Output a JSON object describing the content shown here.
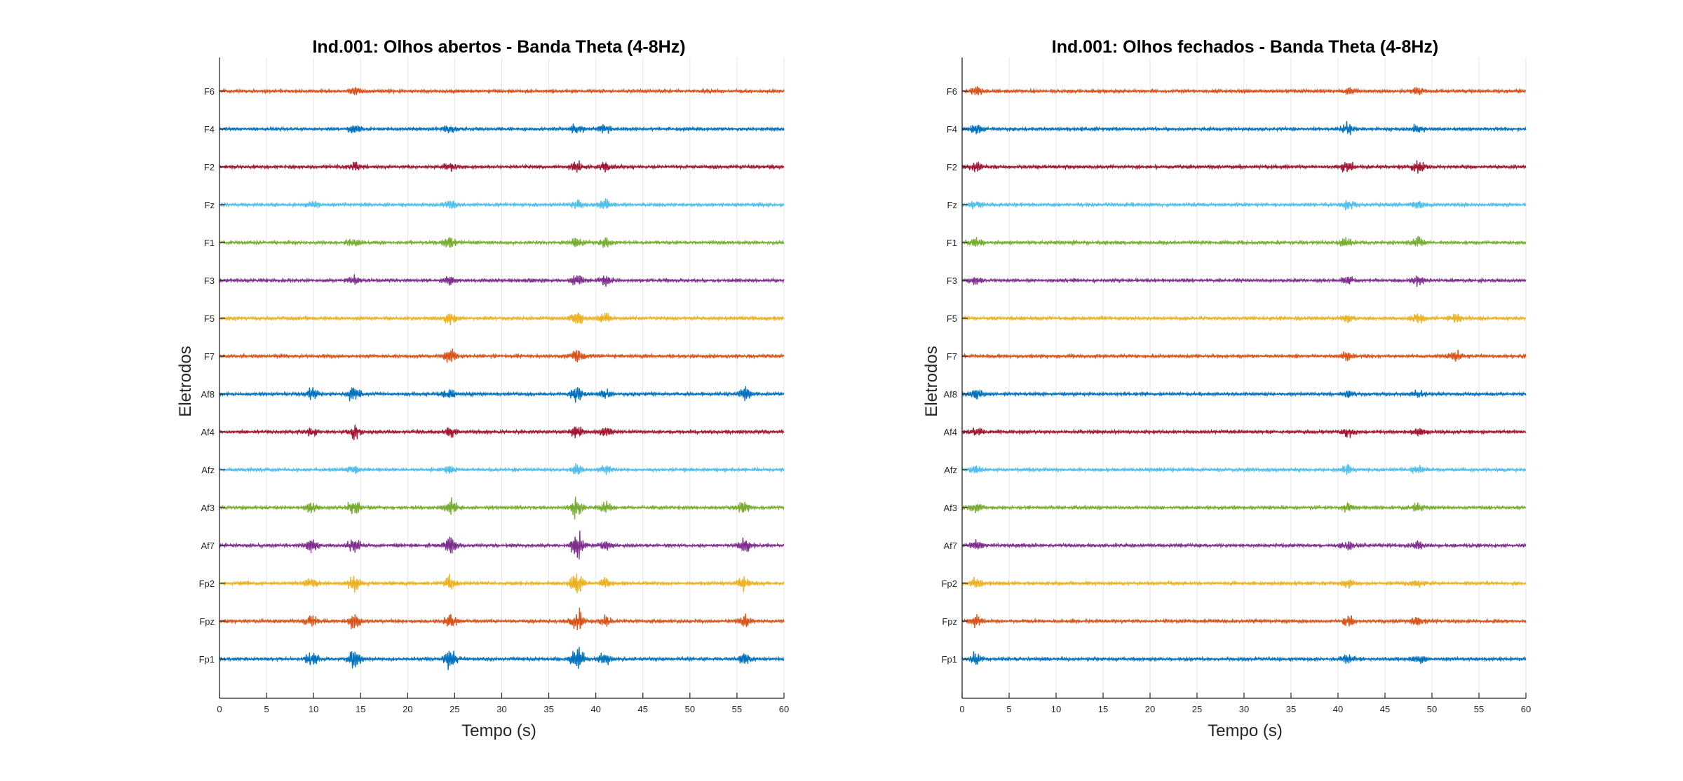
{
  "figure": {
    "background": "#ffffff",
    "axis_color": "#262626",
    "grid_color": "#e6e6e6"
  },
  "chart_data": [
    {
      "type": "line",
      "title": "Ind.001: Olhos abertos - Banda Theta (4-8Hz)",
      "xlabel": "Tempo (s)",
      "ylabel": "Eletrodos",
      "xlim": [
        0,
        60
      ],
      "xticks": [
        "0",
        "5",
        "10",
        "15",
        "20",
        "25",
        "30",
        "35",
        "40",
        "45",
        "50",
        "55",
        "60"
      ],
      "grid": true,
      "yticklabels": [
        "F6",
        "F4",
        "F2",
        "Fz",
        "F1",
        "F3",
        "F5",
        "F7",
        "Af8",
        "Af4",
        "Afz",
        "Af3",
        "Af7",
        "Fp2",
        "Fpz",
        "Fp1"
      ],
      "series": [
        {
          "name": "F6",
          "color": "#D95319",
          "bursts": [
            [
              14.3,
              0.5
            ]
          ]
        },
        {
          "name": "F4",
          "color": "#0072BD",
          "bursts": [
            [
              14.3,
              0.5
            ],
            [
              24.5,
              0.4
            ],
            [
              38.0,
              0.6
            ],
            [
              41.0,
              0.5
            ]
          ]
        },
        {
          "name": "F2",
          "color": "#A2142F",
          "bursts": [
            [
              14.3,
              0.5
            ],
            [
              24.5,
              0.4
            ],
            [
              38.0,
              0.6
            ],
            [
              41.0,
              0.6
            ]
          ]
        },
        {
          "name": "Fz",
          "color": "#4DBEEE",
          "bursts": [
            [
              10.0,
              0.4
            ],
            [
              24.5,
              0.4
            ],
            [
              38.0,
              0.6
            ],
            [
              41.0,
              0.5
            ]
          ]
        },
        {
          "name": "F1",
          "color": "#77AC30",
          "bursts": [
            [
              14.3,
              0.5
            ],
            [
              24.5,
              0.6
            ],
            [
              38.0,
              0.6
            ],
            [
              41.0,
              0.6
            ]
          ]
        },
        {
          "name": "F3",
          "color": "#7E2F8E",
          "bursts": [
            [
              14.3,
              0.5
            ],
            [
              24.5,
              0.6
            ],
            [
              38.0,
              0.6
            ],
            [
              41.0,
              0.6
            ]
          ]
        },
        {
          "name": "F5",
          "color": "#EDB120",
          "bursts": [
            [
              24.5,
              0.8
            ],
            [
              38.0,
              0.9
            ],
            [
              41.0,
              0.5
            ]
          ]
        },
        {
          "name": "F7",
          "color": "#D95319",
          "bursts": [
            [
              24.5,
              0.9
            ],
            [
              38.0,
              1.0
            ]
          ]
        },
        {
          "name": "Af8",
          "color": "#0072BD",
          "bursts": [
            [
              9.8,
              0.8
            ],
            [
              14.3,
              1.0
            ],
            [
              24.5,
              0.6
            ],
            [
              38.0,
              1.0
            ],
            [
              41.0,
              0.6
            ],
            [
              55.8,
              0.8
            ]
          ]
        },
        {
          "name": "Af4",
          "color": "#A2142F",
          "bursts": [
            [
              9.8,
              0.5
            ],
            [
              14.3,
              0.8
            ],
            [
              24.5,
              0.6
            ],
            [
              38.0,
              0.8
            ],
            [
              41.0,
              0.6
            ]
          ]
        },
        {
          "name": "Afz",
          "color": "#4DBEEE",
          "bursts": [
            [
              14.3,
              0.5
            ],
            [
              24.5,
              0.5
            ],
            [
              38.0,
              0.6
            ],
            [
              41.0,
              0.6
            ]
          ]
        },
        {
          "name": "Af3",
          "color": "#77AC30",
          "bursts": [
            [
              9.8,
              0.8
            ],
            [
              14.3,
              1.0
            ],
            [
              24.5,
              1.2
            ],
            [
              38.0,
              1.5
            ],
            [
              41.0,
              0.6
            ],
            [
              55.8,
              0.8
            ]
          ]
        },
        {
          "name": "Af7",
          "color": "#7E2F8E",
          "bursts": [
            [
              9.8,
              0.8
            ],
            [
              14.3,
              1.0
            ],
            [
              24.5,
              1.2
            ],
            [
              38.0,
              1.8
            ],
            [
              41.0,
              0.6
            ],
            [
              55.8,
              0.8
            ]
          ]
        },
        {
          "name": "Fp2",
          "color": "#EDB120",
          "bursts": [
            [
              9.8,
              0.8
            ],
            [
              14.3,
              1.0
            ],
            [
              24.5,
              1.0
            ],
            [
              38.0,
              1.5
            ],
            [
              41.0,
              0.6
            ],
            [
              55.8,
              0.8
            ]
          ]
        },
        {
          "name": "Fpz",
          "color": "#D95319",
          "bursts": [
            [
              9.8,
              0.8
            ],
            [
              14.3,
              1.0
            ],
            [
              24.5,
              1.0
            ],
            [
              38.0,
              1.5
            ],
            [
              41.0,
              0.6
            ],
            [
              55.8,
              0.8
            ]
          ]
        },
        {
          "name": "Fp1",
          "color": "#0072BD",
          "bursts": [
            [
              9.8,
              1.0
            ],
            [
              14.3,
              1.2
            ],
            [
              24.5,
              1.3
            ],
            [
              38.0,
              1.8
            ],
            [
              41.0,
              0.8
            ],
            [
              55.8,
              1.0
            ]
          ]
        }
      ]
    },
    {
      "type": "line",
      "title": "Ind.001: Olhos fechados - Banda Theta (4-8Hz)",
      "xlabel": "Tempo (s)",
      "ylabel": "Eletrodos",
      "xlim": [
        0,
        60
      ],
      "xticks": [
        "0",
        "5",
        "10",
        "15",
        "20",
        "25",
        "30",
        "35",
        "40",
        "45",
        "50",
        "55",
        "60"
      ],
      "grid": true,
      "yticklabels": [
        "F6",
        "F4",
        "F2",
        "Fz",
        "F1",
        "F3",
        "F5",
        "F7",
        "Af8",
        "Af4",
        "Afz",
        "Af3",
        "Af7",
        "Fp2",
        "Fpz",
        "Fp1"
      ],
      "series": [
        {
          "name": "F6",
          "color": "#D95319",
          "bursts": [
            [
              1.5,
              0.5
            ],
            [
              41.0,
              0.4
            ],
            [
              48.5,
              0.5
            ]
          ]
        },
        {
          "name": "F4",
          "color": "#0072BD",
          "bursts": [
            [
              1.5,
              0.5
            ],
            [
              41.0,
              0.6
            ],
            [
              48.5,
              0.6
            ]
          ]
        },
        {
          "name": "F2",
          "color": "#A2142F",
          "bursts": [
            [
              1.5,
              0.6
            ],
            [
              41.0,
              0.8
            ],
            [
              48.5,
              0.8
            ]
          ]
        },
        {
          "name": "Fz",
          "color": "#4DBEEE",
          "bursts": [
            [
              1.5,
              0.5
            ],
            [
              41.0,
              0.6
            ],
            [
              48.5,
              0.6
            ]
          ]
        },
        {
          "name": "F1",
          "color": "#77AC30",
          "bursts": [
            [
              1.5,
              0.5
            ],
            [
              41.0,
              0.6
            ],
            [
              48.5,
              0.6
            ]
          ]
        },
        {
          "name": "F3",
          "color": "#7E2F8E",
          "bursts": [
            [
              1.5,
              0.5
            ],
            [
              41.0,
              0.6
            ],
            [
              48.5,
              0.6
            ]
          ]
        },
        {
          "name": "F5",
          "color": "#EDB120",
          "bursts": [
            [
              41.0,
              0.5
            ],
            [
              48.5,
              0.6
            ],
            [
              52.5,
              0.5
            ]
          ]
        },
        {
          "name": "F7",
          "color": "#D95319",
          "bursts": [
            [
              41.0,
              0.5
            ],
            [
              52.5,
              0.6
            ]
          ]
        },
        {
          "name": "Af8",
          "color": "#0072BD",
          "bursts": [
            [
              1.5,
              0.7
            ],
            [
              41.0,
              0.5
            ],
            [
              48.5,
              0.5
            ]
          ]
        },
        {
          "name": "Af4",
          "color": "#A2142F",
          "bursts": [
            [
              1.5,
              0.5
            ],
            [
              41.0,
              0.7
            ],
            [
              48.5,
              0.6
            ]
          ]
        },
        {
          "name": "Afz",
          "color": "#4DBEEE",
          "bursts": [
            [
              1.5,
              0.5
            ],
            [
              41.0,
              0.6
            ],
            [
              48.5,
              0.5
            ]
          ]
        },
        {
          "name": "Af3",
          "color": "#77AC30",
          "bursts": [
            [
              1.5,
              0.5
            ],
            [
              41.0,
              0.5
            ],
            [
              48.5,
              0.5
            ]
          ]
        },
        {
          "name": "Af7",
          "color": "#7E2F8E",
          "bursts": [
            [
              1.5,
              0.5
            ],
            [
              41.0,
              0.5
            ],
            [
              48.5,
              0.5
            ]
          ]
        },
        {
          "name": "Fp2",
          "color": "#EDB120",
          "bursts": [
            [
              1.5,
              0.6
            ],
            [
              41.0,
              0.6
            ],
            [
              48.5,
              0.5
            ]
          ]
        },
        {
          "name": "Fpz",
          "color": "#D95319",
          "bursts": [
            [
              1.5,
              0.8
            ],
            [
              41.0,
              0.7
            ],
            [
              48.5,
              0.5
            ]
          ]
        },
        {
          "name": "Fp1",
          "color": "#0072BD",
          "bursts": [
            [
              1.5,
              0.8
            ],
            [
              41.0,
              0.6
            ],
            [
              48.5,
              0.5
            ]
          ]
        }
      ]
    }
  ]
}
